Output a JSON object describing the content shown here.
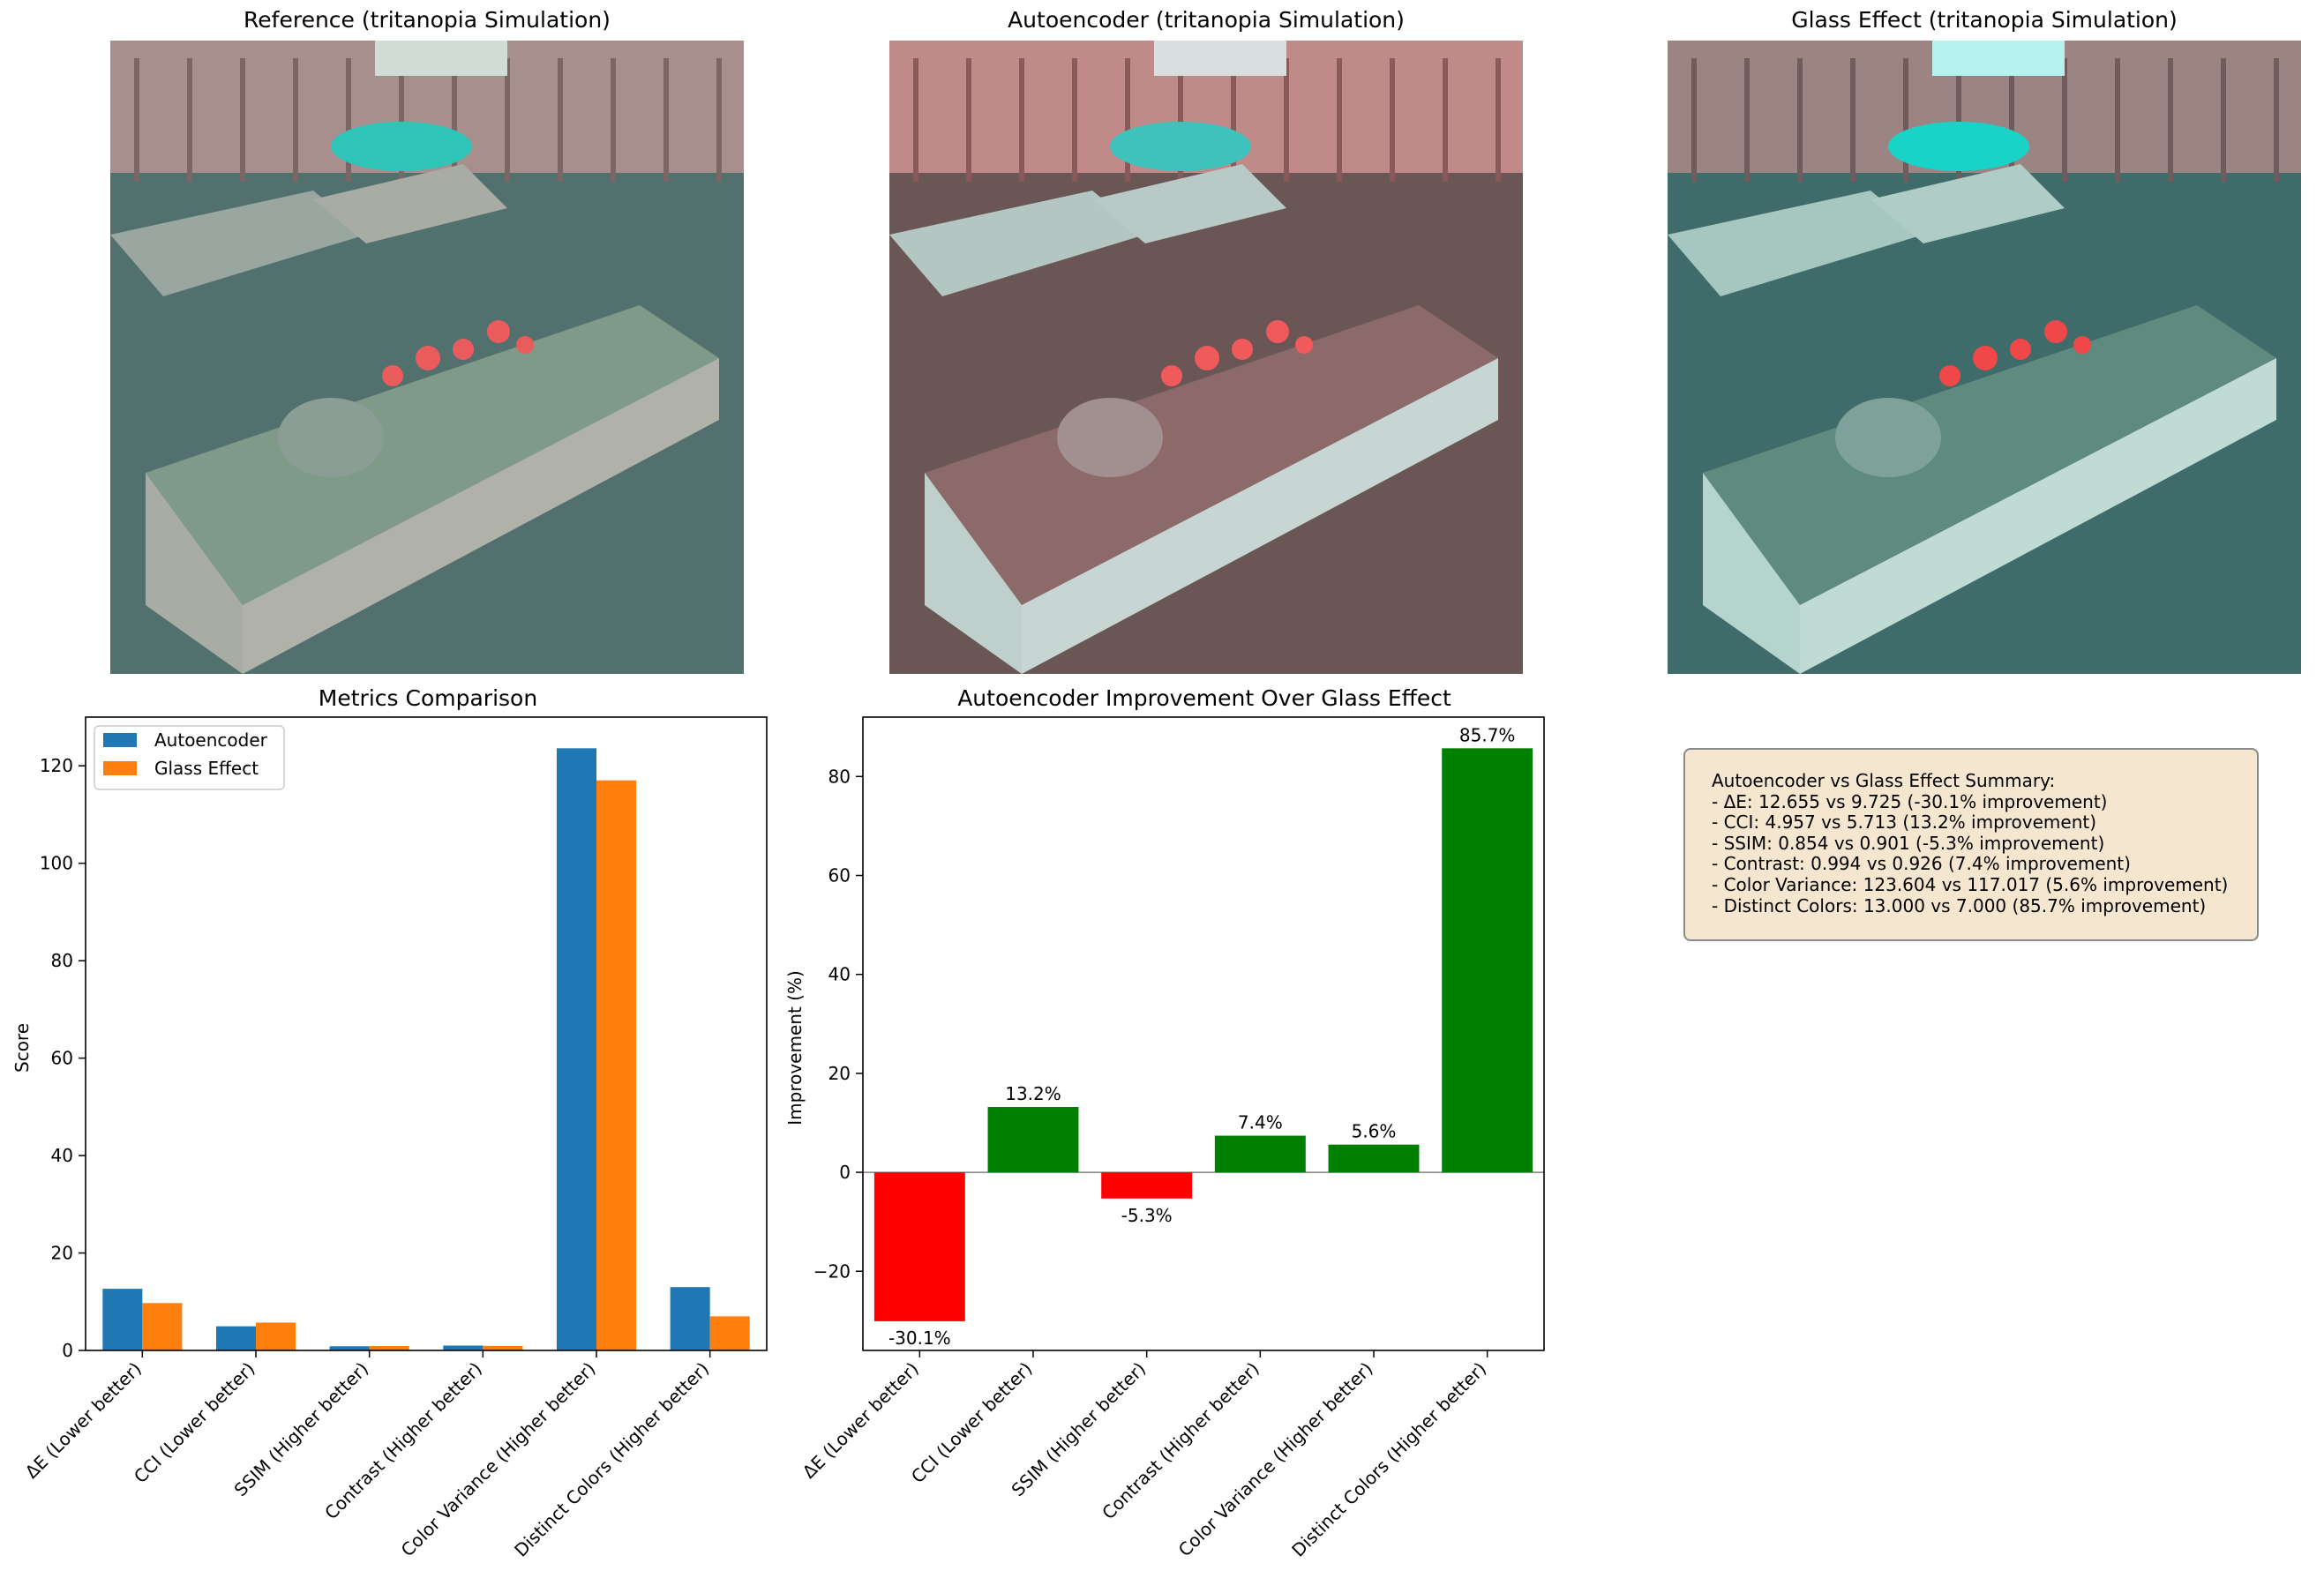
{
  "panels": {
    "reference_title": "Reference (tritanopia Simulation)",
    "autoencoder_title": "Autoencoder (tritanopia Simulation)",
    "glass_title": "Glass Effect (tritanopia Simulation)"
  },
  "chart_data": [
    {
      "type": "bar",
      "title": "Metrics Comparison",
      "xlabel": "",
      "ylabel": "Score",
      "ylim": [
        0,
        130
      ],
      "yticks": [
        "0",
        "20",
        "40",
        "60",
        "80",
        "100",
        "120"
      ],
      "categories": [
        "ΔE (Lower better)",
        "CCI (Lower better)",
        "SSIM (Higher better)",
        "Contrast (Higher better)",
        "Color Variance (Higher better)",
        "Distinct Colors (Higher better)"
      ],
      "series": [
        {
          "name": "Autoencoder",
          "color": "#1f77b4",
          "values": [
            12.655,
            4.957,
            0.854,
            0.994,
            123.604,
            13.0
          ]
        },
        {
          "name": "Glass Effect",
          "color": "#ff7f0e",
          "values": [
            9.725,
            5.713,
            0.901,
            0.926,
            117.017,
            7.0
          ]
        }
      ],
      "legend": "top-left",
      "grid": false
    },
    {
      "type": "bar",
      "title": "Autoencoder Improvement Over Glass Effect",
      "xlabel": "",
      "ylabel": "Improvement (%)",
      "ylim": [
        -36,
        92
      ],
      "yticks": [
        "−20",
        "0",
        "20",
        "40",
        "60",
        "80"
      ],
      "categories": [
        "ΔE (Lower better)",
        "CCI (Lower better)",
        "SSIM (Higher better)",
        "Contrast (Higher better)",
        "Color Variance (Higher better)",
        "Distinct Colors (Higher better)"
      ],
      "values": [
        -30.1,
        13.2,
        -5.3,
        7.4,
        5.6,
        85.7
      ],
      "data_labels": [
        "-30.1%",
        "13.2%",
        "-5.3%",
        "7.4%",
        "5.6%",
        "85.7%"
      ],
      "positive_color": "#008000",
      "negative_color": "#ff0000",
      "grid": false
    }
  ],
  "summary": {
    "title": "Autoencoder vs Glass Effect Summary:",
    "lines": [
      "- ΔE: 12.655 vs 9.725 (-30.1% improvement)",
      "- CCI: 4.957 vs 5.713 (13.2% improvement)",
      "- SSIM: 0.854 vs 0.901 (-5.3% improvement)",
      "- Contrast: 0.994 vs 0.926 (7.4% improvement)",
      "- Color Variance: 123.604 vs 117.017 (5.6% improvement)",
      "- Distinct Colors: 13.000 vs 7.000 (85.7% improvement)"
    ]
  }
}
